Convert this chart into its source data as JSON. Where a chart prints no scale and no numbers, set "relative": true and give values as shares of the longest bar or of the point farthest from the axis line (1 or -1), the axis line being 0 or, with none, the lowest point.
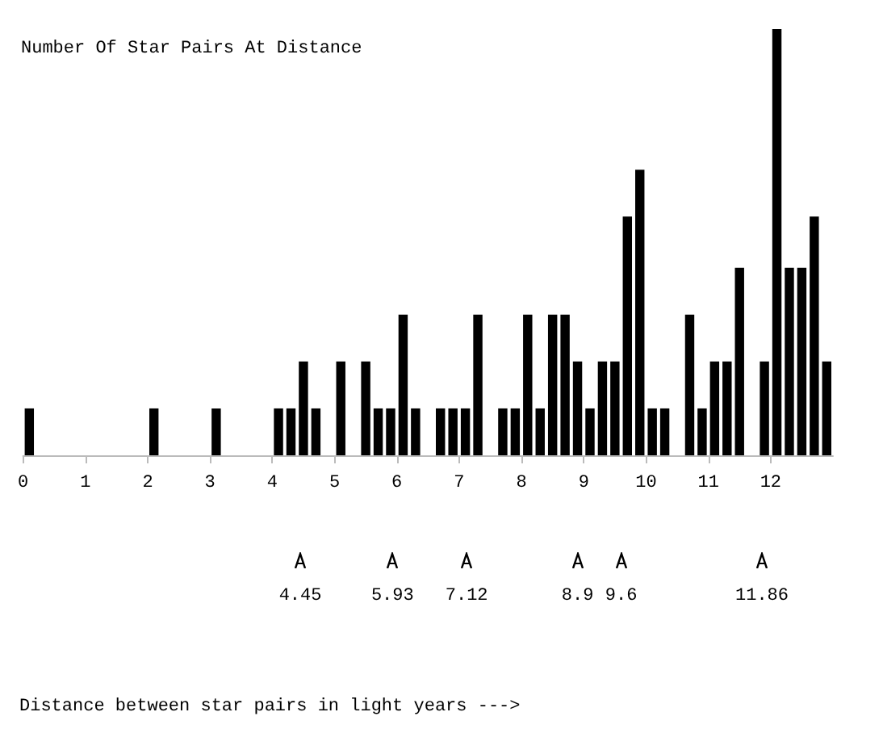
{
  "chart_data": {
    "type": "bar",
    "title": "Number Of Star Pairs At Distance",
    "relative": true,
    "color": "#000000",
    "x": [
      0.1,
      0.3,
      0.5,
      0.7,
      0.9,
      1.1,
      1.3,
      1.5,
      1.7,
      1.9,
      2.1,
      2.3,
      2.5,
      2.7,
      2.9,
      3.1,
      3.3,
      3.5,
      3.7,
      3.9,
      4.1,
      4.3,
      4.5,
      4.7,
      4.9,
      5.1,
      5.3,
      5.5,
      5.7,
      5.9,
      6.1,
      6.3,
      6.5,
      6.7,
      6.9,
      7.1,
      7.3,
      7.5,
      7.7,
      7.9,
      8.1,
      8.3,
      8.5,
      8.7,
      8.9,
      9.1,
      9.3,
      9.5,
      9.7,
      9.9,
      10.1,
      10.3,
      10.5,
      10.7,
      10.9,
      11.1,
      11.3,
      11.5,
      11.7,
      11.9,
      12.1,
      12.3,
      12.5,
      12.7,
      12.9
    ],
    "values": [
      0.11,
      0,
      0,
      0,
      0,
      0,
      0,
      0,
      0,
      0,
      0.11,
      0,
      0,
      0,
      0,
      0.11,
      0,
      0,
      0,
      0,
      0.11,
      0.11,
      0.22,
      0.11,
      0,
      0.22,
      0,
      0.22,
      0.11,
      0.11,
      0.33,
      0.11,
      0,
      0.11,
      0.11,
      0.11,
      0.33,
      0,
      0.11,
      0.11,
      0.33,
      0.11,
      0.33,
      0.33,
      0.22,
      0.11,
      0.22,
      0.22,
      0.56,
      0.67,
      0.11,
      0.11,
      0,
      0.33,
      0.11,
      0.22,
      0.22,
      0.44,
      0,
      0.22,
      1,
      0.44,
      0.44,
      0.56,
      0.22
    ],
    "xlim": [
      0,
      13
    ],
    "xticks": [
      0,
      1,
      2,
      3,
      4,
      5,
      6,
      7,
      8,
      9,
      10,
      11,
      12
    ],
    "x2lim": [
      0,
      13
    ],
    "x2ticks": [
      4.45,
      5.93,
      7.12,
      8.9,
      9.6,
      11.86
    ],
    "annotations": [
      "Distance between star pairs in light years --->"
    ]
  }
}
